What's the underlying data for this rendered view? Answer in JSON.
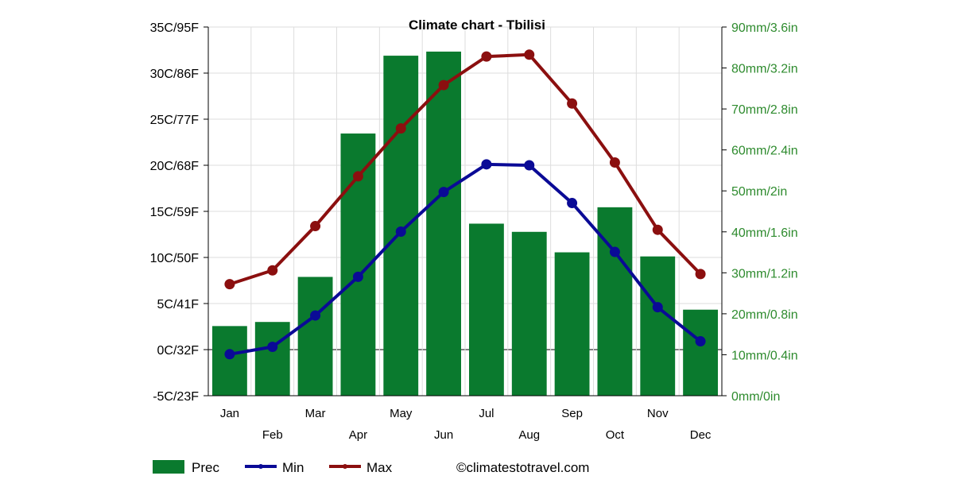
{
  "chart_data": {
    "type": "bar",
    "title": "Climate chart - Tbilisi",
    "categories": [
      "Jan",
      "Feb",
      "Mar",
      "Apr",
      "May",
      "Jun",
      "Jul",
      "Aug",
      "Sep",
      "Oct",
      "Nov",
      "Dec"
    ],
    "series": [
      {
        "name": "Prec",
        "type": "bar",
        "axis": "right",
        "unit": "mm",
        "color": "#0a7a2e",
        "values": [
          17,
          18,
          29,
          64,
          83,
          84,
          42,
          40,
          35,
          46,
          34,
          21
        ]
      },
      {
        "name": "Min",
        "type": "line",
        "axis": "left",
        "unit": "C",
        "color": "#0a0a96",
        "values": [
          -0.5,
          0.3,
          3.7,
          7.9,
          12.8,
          17.1,
          20.1,
          20.0,
          15.9,
          10.6,
          4.6,
          0.9
        ]
      },
      {
        "name": "Max",
        "type": "line",
        "axis": "left",
        "unit": "C",
        "color": "#8b0f0f",
        "values": [
          7.1,
          8.6,
          13.4,
          18.8,
          24.0,
          28.7,
          31.8,
          32.0,
          26.7,
          20.3,
          13.0,
          8.2
        ]
      }
    ],
    "left_axis": {
      "ylim": [
        -5,
        35
      ],
      "ticks": [
        "-5C/23F",
        "0C/32F",
        "5C/41F",
        "10C/50F",
        "15C/59F",
        "20C/68F",
        "25C/77F",
        "30C/86F",
        "35C/95F"
      ]
    },
    "right_axis": {
      "ylim": [
        0,
        90
      ],
      "color": "#2e8b2e",
      "ticks": [
        "0mm/0in",
        "10mm/0.4in",
        "20mm/0.8in",
        "30mm/1.2in",
        "40mm/1.6in",
        "50mm/2in",
        "60mm/2.4in",
        "70mm/2.8in",
        "80mm/3.2in",
        "90mm/3.6in"
      ]
    },
    "grid": true,
    "legend": {
      "placement": "bottom-left",
      "entries": [
        "Prec",
        "Min",
        "Max"
      ]
    },
    "credit": "©climatestotravel.com"
  }
}
